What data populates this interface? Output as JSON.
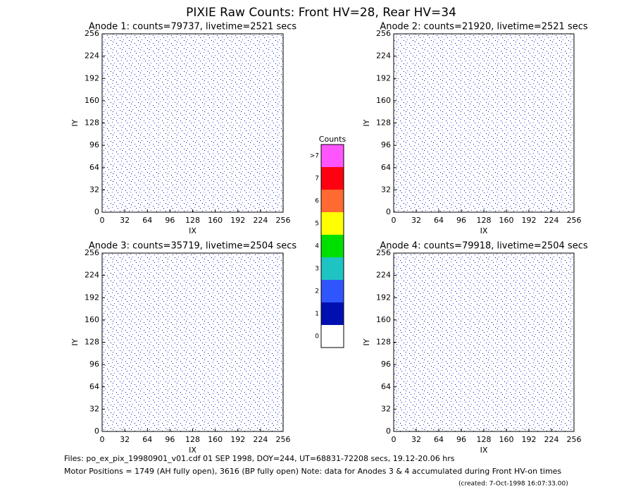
{
  "title": "PIXIE Raw Counts:  Front HV=28, Rear HV=34",
  "panels": [
    {
      "title": "Anode 1: counts=79737, livetime=2521 secs",
      "x_label": "IX",
      "y_label": "IY",
      "xlim": [
        0,
        256
      ],
      "ylim": [
        0,
        256
      ],
      "xticks": [
        0,
        32,
        64,
        96,
        128,
        160,
        192,
        224,
        256
      ],
      "yticks": [
        0,
        32,
        64,
        96,
        128,
        160,
        192,
        224,
        256
      ]
    },
    {
      "title": "Anode 2: counts=21920, livetime=2521 secs",
      "x_label": "IX",
      "y_label": "IY",
      "xlim": [
        0,
        256
      ],
      "ylim": [
        0,
        256
      ],
      "xticks": [
        0,
        32,
        64,
        96,
        128,
        160,
        192,
        224,
        256
      ],
      "yticks": [
        0,
        32,
        64,
        96,
        128,
        160,
        192,
        224,
        256
      ]
    },
    {
      "title": "Anode 3: counts=35719, livetime=2504 secs",
      "x_label": "IX",
      "y_label": "IY",
      "xlim": [
        0,
        256
      ],
      "ylim": [
        0,
        256
      ],
      "xticks": [
        0,
        32,
        64,
        96,
        128,
        160,
        192,
        224,
        256
      ],
      "yticks": [
        0,
        32,
        64,
        96,
        128,
        160,
        192,
        224,
        256
      ]
    },
    {
      "title": "Anode 4: counts=79918, livetime=2504 secs",
      "x_label": "IX",
      "y_label": "IY",
      "xlim": [
        0,
        256
      ],
      "ylim": [
        0,
        256
      ],
      "xticks": [
        0,
        32,
        64,
        96,
        128,
        160,
        192,
        224,
        256
      ],
      "yticks": [
        0,
        32,
        64,
        96,
        128,
        160,
        192,
        224,
        256
      ]
    }
  ],
  "colorbar": {
    "title": "Counts",
    "levels": [
      {
        "label": "0",
        "color": "#ffffff"
      },
      {
        "label": "1",
        "color": "#0010b0"
      },
      {
        "label": "2",
        "color": "#2f55ff"
      },
      {
        "label": "3",
        "color": "#1ec3c3"
      },
      {
        "label": "4",
        "color": "#00e000"
      },
      {
        "label": "5",
        "color": "#ffff00"
      },
      {
        "label": "6",
        "color": "#ff6a30"
      },
      {
        "label": "7",
        "color": "#ff0010"
      },
      {
        "label": ">7",
        "color": "#ff55ff"
      }
    ]
  },
  "footer": [
    "Files: po_ex_pix_19980901_v01.cdf     01 SEP 1998, DOY=244, UT=68831-72208 secs, 19.12-20.06 hrs",
    "Motor Positions = 1749 (AH fully open), 3616 (BP fully open)    Note: data for Anodes 3 & 4 accumulated during Front HV-on times"
  ],
  "created": "(created:  7-Oct-1998 16:07:33.00)"
}
